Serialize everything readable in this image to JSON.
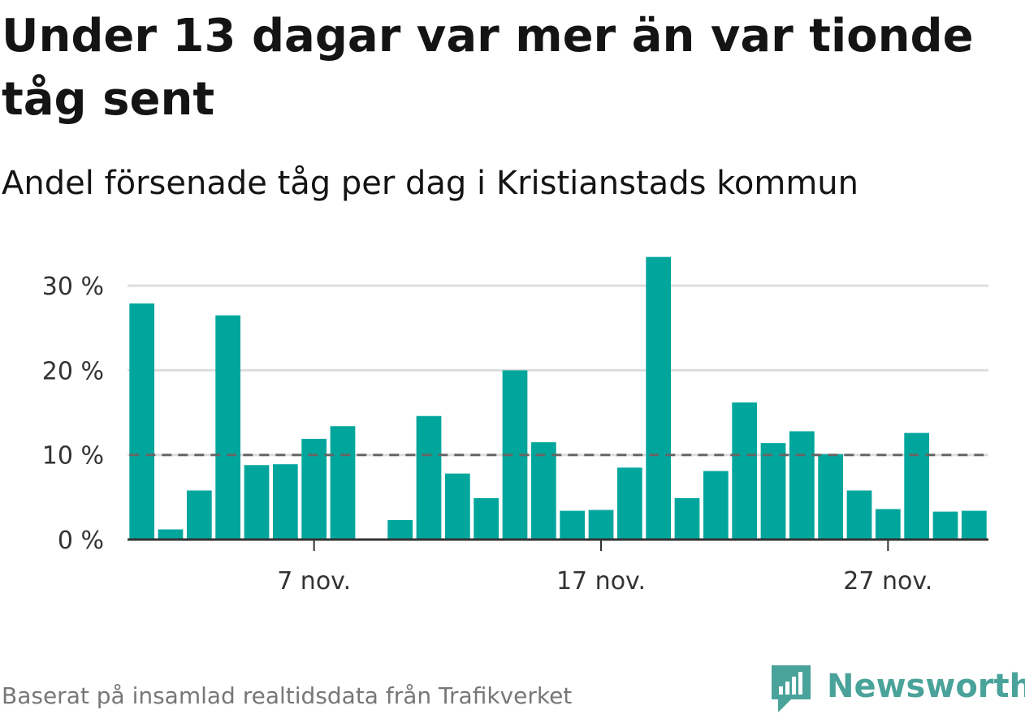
{
  "title": "Under 13 dagar var mer än var tionde tåg sent",
  "subtitle": "Andel försenade tåg per dag i Kristianstads kommun",
  "source": "Baserat på insamlad realtidsdata från Trafikverket",
  "brand": {
    "name": "Newsworthy",
    "icon": "newsworthy-logo-icon",
    "color": "#4aa39a"
  },
  "chart_data": {
    "type": "bar",
    "x": [
      1,
      2,
      3,
      4,
      5,
      6,
      7,
      8,
      9,
      10,
      11,
      12,
      13,
      14,
      15,
      16,
      17,
      18,
      19,
      20,
      21,
      22,
      23,
      24,
      25,
      26,
      27,
      28,
      29,
      30
    ],
    "values": [
      27.9,
      1.2,
      5.8,
      26.5,
      8.8,
      8.9,
      11.9,
      13.4,
      null,
      2.3,
      14.6,
      7.8,
      4.9,
      20.0,
      11.5,
      3.4,
      3.5,
      8.5,
      33.4,
      4.9,
      8.1,
      16.2,
      11.4,
      12.8,
      10.1,
      5.8,
      3.6,
      12.6,
      3.3,
      3.4
    ],
    "x_ticks": [
      {
        "x": 7,
        "label": "7 nov."
      },
      {
        "x": 17,
        "label": "17 nov."
      },
      {
        "x": 27,
        "label": "27 nov."
      }
    ],
    "y_ticks": [
      {
        "value": 0,
        "label": "0 %"
      },
      {
        "value": 10,
        "label": "10 %"
      },
      {
        "value": 20,
        "label": "20 %"
      },
      {
        "value": 30,
        "label": "30 %"
      }
    ],
    "ylim": [
      0,
      35
    ],
    "xlim": [
      0.5,
      30.5
    ],
    "reference_line": 10,
    "grid": true,
    "colors": {
      "bar": "#00a69c",
      "grid": "#dddddd",
      "axis": "#333333",
      "reference": "#666666"
    }
  }
}
